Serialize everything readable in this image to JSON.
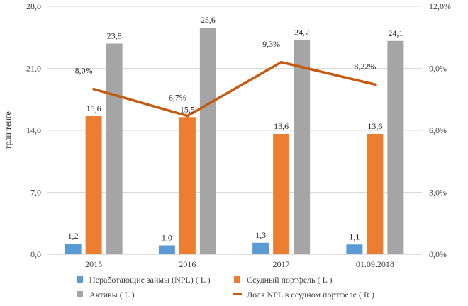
{
  "chart_data": {
    "type": "bar",
    "categories": [
      "2015",
      "2016",
      "2017",
      "01.09.2018"
    ],
    "ylabel": "трлн тенге",
    "ylim": [
      0,
      28
    ],
    "yticks": [
      "0,0",
      "7,0",
      "14,0",
      "21,0",
      "28,0"
    ],
    "y2lim": [
      0,
      12
    ],
    "y2ticks": [
      "0,0%",
      "3,0%",
      "6,0%",
      "9,0%",
      "12,0%"
    ],
    "grid": true,
    "legend_position": "bottom",
    "series": [
      {
        "name": "Неработающие займы (NPL) ( L )",
        "kind": "bar",
        "axis": "left",
        "color": "#5B9BD5",
        "values": [
          1.2,
          1.0,
          1.3,
          1.1
        ],
        "labels": [
          "1,2",
          "1,0",
          "1,3",
          "1,1"
        ]
      },
      {
        "name": "Ссудный портфель ( L )",
        "kind": "bar",
        "axis": "left",
        "color": "#ED7D31",
        "values": [
          15.6,
          15.5,
          13.6,
          13.6
        ],
        "labels": [
          "15,6",
          "15,5",
          "13,6",
          "13,6"
        ]
      },
      {
        "name": "Активы ( L )",
        "kind": "bar",
        "axis": "left",
        "color": "#A5A5A5",
        "values": [
          23.8,
          25.6,
          24.2,
          24.1
        ],
        "labels": [
          "23,8",
          "25,6",
          "24,2",
          "24,1"
        ]
      },
      {
        "name": "Доля NPL в ссудном портфеле ( R )",
        "kind": "line",
        "axis": "right",
        "color": "#C55A11",
        "values": [
          8.0,
          6.7,
          9.3,
          8.22
        ],
        "labels": [
          "8,0%",
          "6,7%",
          "9,3%",
          "8,22%"
        ]
      }
    ]
  }
}
